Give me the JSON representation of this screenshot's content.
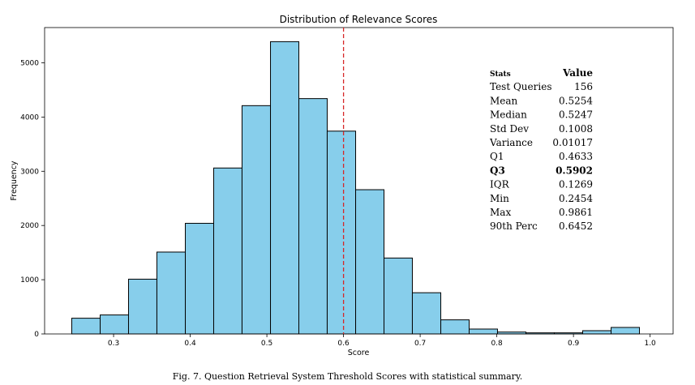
{
  "caption": "Fig. 7.  Question Retrieval System Threshold Scores with statistical summary.",
  "chart_data": {
    "type": "bar",
    "title": "Distribution of Relevance Scores",
    "xlabel": "Score",
    "ylabel": "Frequency",
    "xlim": [
      0.21,
      1.03
    ],
    "ylim": [
      0,
      5650
    ],
    "xticks": [
      "0.3",
      "0.4",
      "0.5",
      "0.6",
      "0.7",
      "0.8",
      "0.9",
      "1.0"
    ],
    "yticks": [
      "0",
      "1000",
      "2000",
      "3000",
      "4000",
      "5000"
    ],
    "bar_color": "#87ceeb",
    "bar_edge_color": "#000000",
    "bins": [
      [
        0.2454,
        0.2825,
        290
      ],
      [
        0.2825,
        0.3195,
        350
      ],
      [
        0.3195,
        0.3565,
        1010
      ],
      [
        0.3565,
        0.3936,
        1510
      ],
      [
        0.3936,
        0.4306,
        2040
      ],
      [
        0.4306,
        0.4676,
        3060
      ],
      [
        0.4676,
        0.5047,
        4210
      ],
      [
        0.5047,
        0.5417,
        5390
      ],
      [
        0.5417,
        0.5787,
        4340
      ],
      [
        0.5787,
        0.6158,
        3740
      ],
      [
        0.6158,
        0.6528,
        2660
      ],
      [
        0.6528,
        0.6898,
        1400
      ],
      [
        0.6898,
        0.7269,
        760
      ],
      [
        0.7269,
        0.7639,
        260
      ],
      [
        0.7639,
        0.8009,
        90
      ],
      [
        0.8009,
        0.838,
        35
      ],
      [
        0.838,
        0.875,
        20
      ],
      [
        0.875,
        0.912,
        20
      ],
      [
        0.912,
        0.9491,
        60
      ],
      [
        0.9491,
        0.9861,
        120
      ]
    ],
    "reference_line": {
      "x": 0.6,
      "color": "#d62728",
      "style": "dashed"
    },
    "stats_table": {
      "header": [
        "Stats",
        "Value"
      ],
      "rows": [
        {
          "label": "Test Queries",
          "value": "156",
          "bold": false
        },
        {
          "label": "Mean",
          "value": "0.5254",
          "bold": false
        },
        {
          "label": "Median",
          "value": "0.5247",
          "bold": false
        },
        {
          "label": "Std Dev",
          "value": "0.1008",
          "bold": false
        },
        {
          "label": "Variance",
          "value": "0.01017",
          "bold": false
        },
        {
          "label": "Q1",
          "value": "0.4633",
          "bold": false
        },
        {
          "label": "Q3",
          "value": "0.5902",
          "bold": true
        },
        {
          "label": "IQR",
          "value": "0.1269",
          "bold": false
        },
        {
          "label": "Min",
          "value": "0.2454",
          "bold": false
        },
        {
          "label": "Max",
          "value": "0.9861",
          "bold": false
        },
        {
          "label": "90th Perc",
          "value": "0.6452",
          "bold": false
        }
      ]
    }
  }
}
